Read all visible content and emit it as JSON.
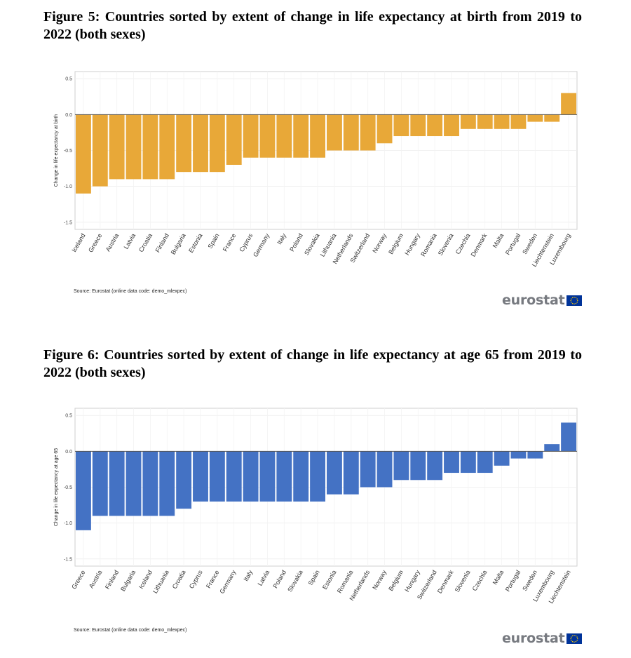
{
  "figures": [
    {
      "title": "Figure 5: Countries sorted by extent of change in life expectancy at birth from 2019 to 2022 (both sexes)",
      "source": "Source: Eurostat (online data code: demo_mlexpec)",
      "logo_text": "eurostat",
      "chart_data": {
        "type": "bar",
        "title": "",
        "xlabel": "",
        "ylabel": "Change in life expectancy at birth",
        "ylim": [
          -1.6,
          0.6
        ],
        "yticks": [
          0.5,
          0.0,
          -0.5,
          -1.0,
          -1.5
        ],
        "ytick_labels": [
          "0.5",
          "0.0",
          "-0.5",
          "-1.0",
          "-1.5"
        ],
        "grid": true,
        "bar_color": "#e8a838",
        "categories": [
          "Iceland",
          "Greece",
          "Austria",
          "Latvia",
          "Croatia",
          "Finland",
          "Bulgaria",
          "Estonia",
          "Spain",
          "France",
          "Cyprus",
          "Germany",
          "Italy",
          "Poland",
          "Slovakia",
          "Lithuania",
          "Netherlands",
          "Switzerland",
          "Norway",
          "Belgium",
          "Hungary",
          "Romania",
          "Slovenia",
          "Czechia",
          "Denmark",
          "Malta",
          "Portugal",
          "Sweden",
          "Liechtenstein",
          "Luxembourg"
        ],
        "values": [
          -1.1,
          -1.0,
          -0.9,
          -0.9,
          -0.9,
          -0.9,
          -0.8,
          -0.8,
          -0.8,
          -0.7,
          -0.6,
          -0.6,
          -0.6,
          -0.6,
          -0.6,
          -0.5,
          -0.5,
          -0.5,
          -0.4,
          -0.3,
          -0.3,
          -0.3,
          -0.3,
          -0.2,
          -0.2,
          -0.2,
          -0.2,
          -0.1,
          -0.1,
          0.3
        ]
      }
    },
    {
      "title": "Figure 6: Countries sorted by extent of change in life expectancy at age 65 from 2019 to 2022 (both sexes)",
      "source": "Source: Eurostat (online data code: demo_mlexpec)",
      "logo_text": "eurostat",
      "chart_data": {
        "type": "bar",
        "title": "",
        "xlabel": "",
        "ylabel": "Change in life expectancy at age 65",
        "ylim": [
          -1.6,
          0.6
        ],
        "yticks": [
          0.5,
          0.0,
          -0.5,
          -1.0,
          -1.5
        ],
        "ytick_labels": [
          "0.5",
          "0.0",
          "-0.5",
          "-1.0",
          "-1.5"
        ],
        "grid": true,
        "bar_color": "#4472c4",
        "categories": [
          "Greece",
          "Austria",
          "Finland",
          "Bulgaria",
          "Iceland",
          "Lithuania",
          "Croatia",
          "Cyprus",
          "France",
          "Germany",
          "Italy",
          "Latvia",
          "Poland",
          "Slovakia",
          "Spain",
          "Estonia",
          "Romania",
          "Netherlands",
          "Norway",
          "Belgium",
          "Hungary",
          "Switzerland",
          "Denmark",
          "Slovenia",
          "Czechia",
          "Malta",
          "Portugal",
          "Sweden",
          "Luxembourg",
          "Liechtenstein"
        ],
        "values": [
          -1.1,
          -0.9,
          -0.9,
          -0.9,
          -0.9,
          -0.9,
          -0.8,
          -0.7,
          -0.7,
          -0.7,
          -0.7,
          -0.7,
          -0.7,
          -0.7,
          -0.7,
          -0.6,
          -0.6,
          -0.5,
          -0.5,
          -0.4,
          -0.4,
          -0.4,
          -0.3,
          -0.3,
          -0.3,
          -0.2,
          -0.1,
          -0.1,
          0.1,
          0.4
        ]
      }
    }
  ],
  "colors": {
    "figure5_bars": "#e8a838",
    "figure6_bars": "#4472c4",
    "eu_flag": "#003399",
    "eu_stars": "#ffcc00",
    "logo_text": "#777a80"
  }
}
